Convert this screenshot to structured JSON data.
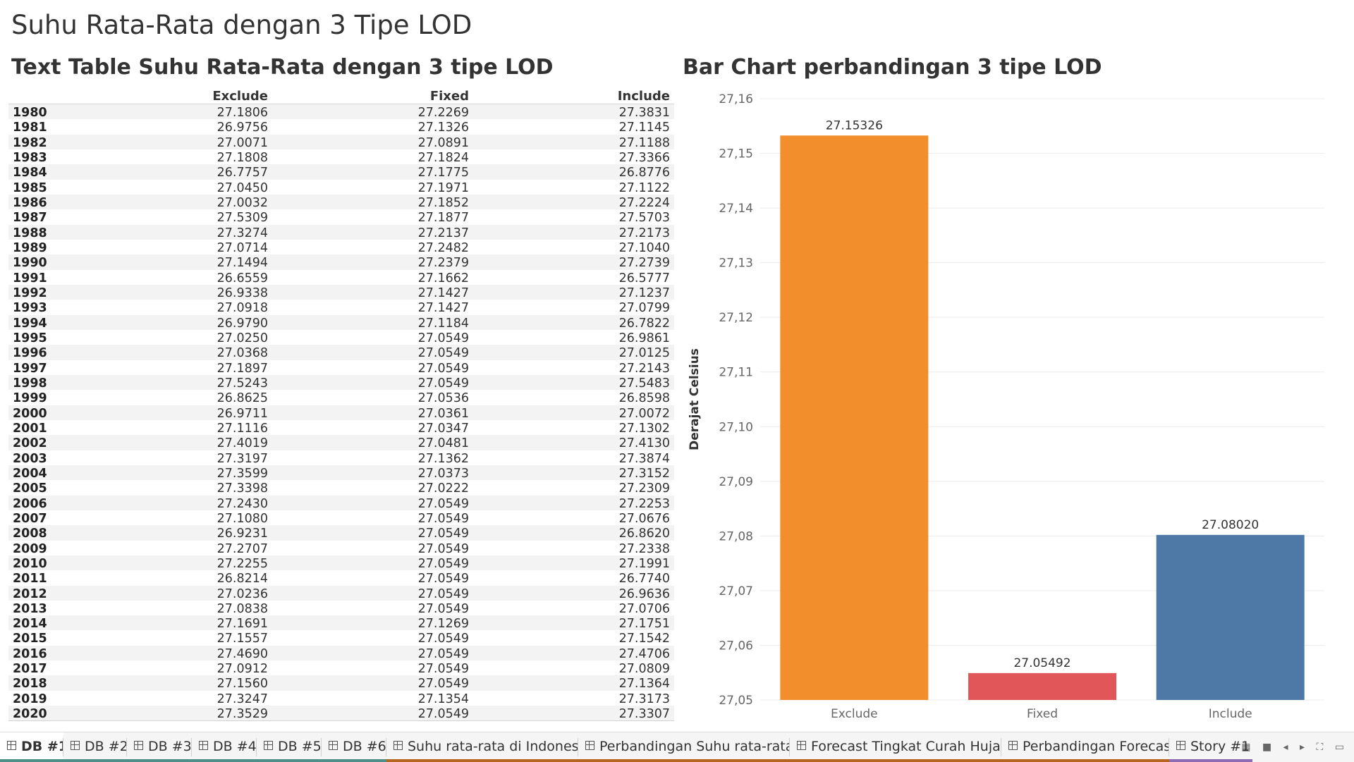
{
  "dashboard": {
    "title": "Suhu Rata-Rata dengan 3 Tipe LOD"
  },
  "text_table": {
    "title": "Text Table Suhu Rata-Rata dengan 3 tipe LOD",
    "headers": {
      "exclude": "Exclude",
      "fixed": "Fixed",
      "include": "Include"
    },
    "rows": [
      {
        "year": "1980",
        "exclude": "27.1806",
        "fixed": "27.2269",
        "include": "27.3831"
      },
      {
        "year": "1981",
        "exclude": "26.9756",
        "fixed": "27.1326",
        "include": "27.1145"
      },
      {
        "year": "1982",
        "exclude": "27.0071",
        "fixed": "27.0891",
        "include": "27.1188"
      },
      {
        "year": "1983",
        "exclude": "27.1808",
        "fixed": "27.1824",
        "include": "27.3366"
      },
      {
        "year": "1984",
        "exclude": "26.7757",
        "fixed": "27.1775",
        "include": "26.8776"
      },
      {
        "year": "1985",
        "exclude": "27.0450",
        "fixed": "27.1971",
        "include": "27.1122"
      },
      {
        "year": "1986",
        "exclude": "27.0032",
        "fixed": "27.1852",
        "include": "27.2224"
      },
      {
        "year": "1987",
        "exclude": "27.5309",
        "fixed": "27.1877",
        "include": "27.5703"
      },
      {
        "year": "1988",
        "exclude": "27.3274",
        "fixed": "27.2137",
        "include": "27.2173"
      },
      {
        "year": "1989",
        "exclude": "27.0714",
        "fixed": "27.2482",
        "include": "27.1040"
      },
      {
        "year": "1990",
        "exclude": "27.1494",
        "fixed": "27.2379",
        "include": "27.2739"
      },
      {
        "year": "1991",
        "exclude": "26.6559",
        "fixed": "27.1662",
        "include": "26.5777"
      },
      {
        "year": "1992",
        "exclude": "26.9338",
        "fixed": "27.1427",
        "include": "27.1237"
      },
      {
        "year": "1993",
        "exclude": "27.0918",
        "fixed": "27.1427",
        "include": "27.0799"
      },
      {
        "year": "1994",
        "exclude": "26.9790",
        "fixed": "27.1184",
        "include": "26.7822"
      },
      {
        "year": "1995",
        "exclude": "27.0250",
        "fixed": "27.0549",
        "include": "26.9861"
      },
      {
        "year": "1996",
        "exclude": "27.0368",
        "fixed": "27.0549",
        "include": "27.0125"
      },
      {
        "year": "1997",
        "exclude": "27.1897",
        "fixed": "27.0549",
        "include": "27.2143"
      },
      {
        "year": "1998",
        "exclude": "27.5243",
        "fixed": "27.0549",
        "include": "27.5483"
      },
      {
        "year": "1999",
        "exclude": "26.8625",
        "fixed": "27.0536",
        "include": "26.8598"
      },
      {
        "year": "2000",
        "exclude": "26.9711",
        "fixed": "27.0361",
        "include": "27.0072"
      },
      {
        "year": "2001",
        "exclude": "27.1116",
        "fixed": "27.0347",
        "include": "27.1302"
      },
      {
        "year": "2002",
        "exclude": "27.4019",
        "fixed": "27.0481",
        "include": "27.4130"
      },
      {
        "year": "2003",
        "exclude": "27.3197",
        "fixed": "27.1362",
        "include": "27.3874"
      },
      {
        "year": "2004",
        "exclude": "27.3599",
        "fixed": "27.0373",
        "include": "27.3152"
      },
      {
        "year": "2005",
        "exclude": "27.3398",
        "fixed": "27.0222",
        "include": "27.2309"
      },
      {
        "year": "2006",
        "exclude": "27.2430",
        "fixed": "27.0549",
        "include": "27.2253"
      },
      {
        "year": "2007",
        "exclude": "27.1080",
        "fixed": "27.0549",
        "include": "27.0676"
      },
      {
        "year": "2008",
        "exclude": "26.9231",
        "fixed": "27.0549",
        "include": "26.8620"
      },
      {
        "year": "2009",
        "exclude": "27.2707",
        "fixed": "27.0549",
        "include": "27.2338"
      },
      {
        "year": "2010",
        "exclude": "27.2255",
        "fixed": "27.0549",
        "include": "27.1991"
      },
      {
        "year": "2011",
        "exclude": "26.8214",
        "fixed": "27.0549",
        "include": "26.7740"
      },
      {
        "year": "2012",
        "exclude": "27.0236",
        "fixed": "27.0549",
        "include": "26.9636"
      },
      {
        "year": "2013",
        "exclude": "27.0838",
        "fixed": "27.0549",
        "include": "27.0706"
      },
      {
        "year": "2014",
        "exclude": "27.1691",
        "fixed": "27.1269",
        "include": "27.1751"
      },
      {
        "year": "2015",
        "exclude": "27.1557",
        "fixed": "27.0549",
        "include": "27.1542"
      },
      {
        "year": "2016",
        "exclude": "27.4690",
        "fixed": "27.0549",
        "include": "27.4706"
      },
      {
        "year": "2017",
        "exclude": "27.0912",
        "fixed": "27.0549",
        "include": "27.0809"
      },
      {
        "year": "2018",
        "exclude": "27.1560",
        "fixed": "27.0549",
        "include": "27.1364"
      },
      {
        "year": "2019",
        "exclude": "27.3247",
        "fixed": "27.1354",
        "include": "27.3173"
      },
      {
        "year": "2020",
        "exclude": "27.3529",
        "fixed": "27.0549",
        "include": "27.3307"
      }
    ]
  },
  "bar_chart": {
    "title": "Bar Chart perbandingan 3 tipe LOD"
  },
  "chart_data": {
    "type": "bar",
    "title": "Bar Chart perbandingan 3 tipe LOD",
    "categories": [
      "Exclude",
      "Fixed",
      "Include"
    ],
    "values": [
      27.15326,
      27.05492,
      27.0802
    ],
    "value_labels": [
      "27.15326",
      "27.05492",
      "27.08020"
    ],
    "colors": [
      "#f28e2b",
      "#e15759",
      "#4e79a7"
    ],
    "xlabel": "",
    "ylabel": "Derajat Celsius",
    "ylim": [
      27.05,
      27.16
    ],
    "yticks": [
      27.05,
      27.06,
      27.07,
      27.08,
      27.09,
      27.1,
      27.11,
      27.12,
      27.13,
      27.14,
      27.15,
      27.16
    ],
    "ytick_labels": [
      "27,05",
      "27,06",
      "27,07",
      "27,08",
      "27,09",
      "27,10",
      "27,11",
      "27,12",
      "27,13",
      "27,14",
      "27,15",
      "27,16"
    ],
    "grid": true,
    "legend": "none"
  },
  "tabs": [
    {
      "label": "DB #1",
      "active": true,
      "color": "#4e8f8a"
    },
    {
      "label": "DB #2",
      "active": false,
      "color": "#4e8f8a"
    },
    {
      "label": "DB #3",
      "active": false,
      "color": "#4e8f8a"
    },
    {
      "label": "DB #4",
      "active": false,
      "color": "#4e8f8a"
    },
    {
      "label": "DB #5",
      "active": false,
      "color": "#4e8f8a"
    },
    {
      "label": "DB #6",
      "active": false,
      "color": "#4e8f8a"
    },
    {
      "label": "Suhu rata-rata di Indonesia",
      "active": false,
      "color": "#b5651d"
    },
    {
      "label": "Perbandingan Suhu rata-rata ...",
      "active": false,
      "color": "#b5651d"
    },
    {
      "label": "Forecast Tingkat Curah Hujan...",
      "active": false,
      "color": "#b5651d"
    },
    {
      "label": "Perbandingan Forecast",
      "active": false,
      "color": "#b5651d"
    },
    {
      "label": "Story #1",
      "active": false,
      "color": "#8e6bb5"
    }
  ]
}
